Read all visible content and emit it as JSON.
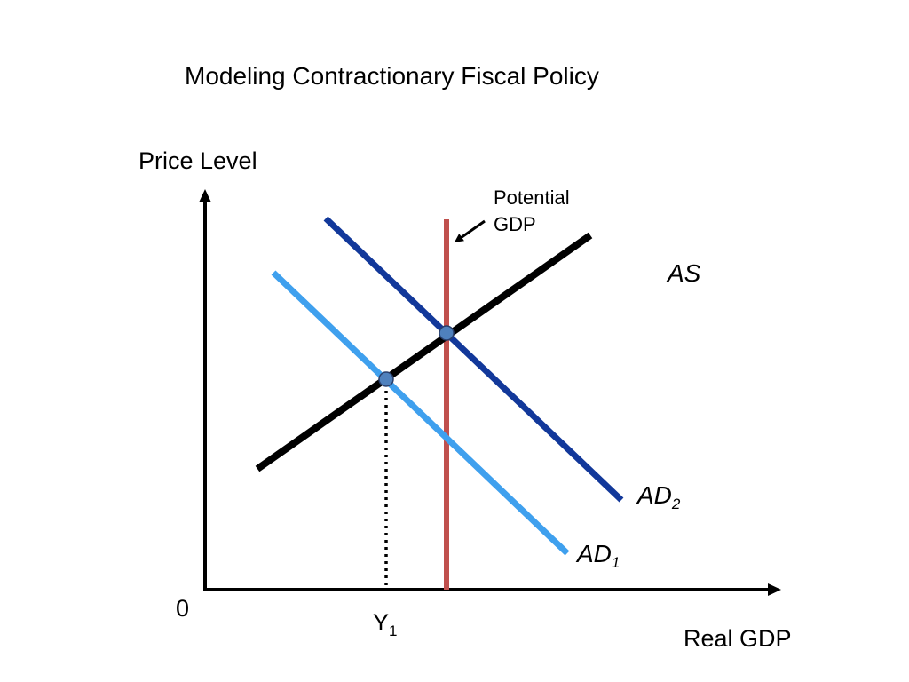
{
  "title": "Modeling Contractionary Fiscal Policy",
  "axes": {
    "y_label": "Price Level",
    "x_label": "Real GDP",
    "origin": "0"
  },
  "marks": {
    "y1_main": "Y",
    "y1_sub": "1",
    "potential_line1": "Potential",
    "potential_line2": "GDP"
  },
  "curves": {
    "as": {
      "label": "AS",
      "color": "#000000"
    },
    "ad1": {
      "label_main": "AD",
      "label_sub": "1",
      "color": "#3fa0ee"
    },
    "ad2": {
      "label_main": "AD",
      "label_sub": "2",
      "color": "#12389a"
    },
    "potential_gdp": {
      "color": "#c0504d"
    }
  },
  "equilibrium_point_color": "#4f81bd"
}
